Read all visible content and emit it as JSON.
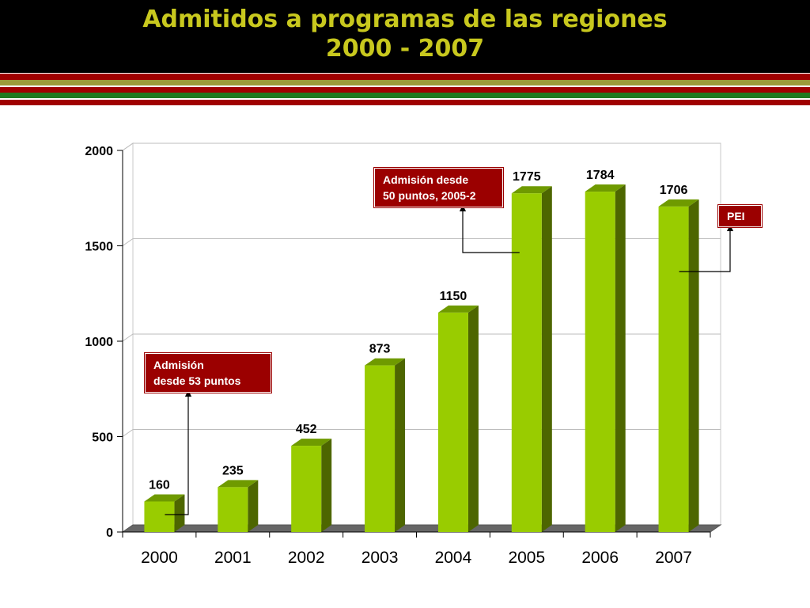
{
  "slide": {
    "title_line1": "Admitidos a programas de las regiones",
    "title_line2": "2000 - 2007",
    "colors": {
      "header_bg": "#000000",
      "title": "#c8c81e",
      "stripe_red": "#a00000",
      "stripe_olive": "#9c9c3a",
      "stripe_green": "#1f7a1f",
      "bar_front": "#99cc00",
      "bar_side": "#4d6600",
      "bar_top": "#6f9a00",
      "floor": "#666666",
      "callout_bg": "#9b0000"
    }
  },
  "chart_data": {
    "type": "bar",
    "title": "Admitidos a programas de las regiones 2000 - 2007",
    "categories": [
      "2000",
      "2001",
      "2002",
      "2003",
      "2004",
      "2005",
      "2006",
      "2007"
    ],
    "values": [
      160,
      235,
      452,
      873,
      1150,
      1775,
      1784,
      1706
    ],
    "data_labels": [
      "160",
      "235",
      "452",
      "873",
      "1150",
      "1775",
      "1784",
      "1706"
    ],
    "xlabel": "",
    "ylabel": "",
    "ylim": [
      0,
      2000
    ],
    "yticks": [
      0,
      500,
      1000,
      1500,
      2000
    ],
    "ytick_labels": [
      "0",
      "500",
      "1000",
      "1500",
      "2000"
    ],
    "grid": true,
    "legend": "none",
    "style": "3d-column"
  },
  "annotations": [
    {
      "id": "2000",
      "text": "Admisión\ndesde 53 puntos",
      "points_to": "2000"
    },
    {
      "id": "2005",
      "text": "Admisión desde\n50 puntos, 2005-2",
      "points_to": "2005"
    },
    {
      "id": "pei",
      "text": "PEI",
      "points_to": "2007"
    }
  ]
}
